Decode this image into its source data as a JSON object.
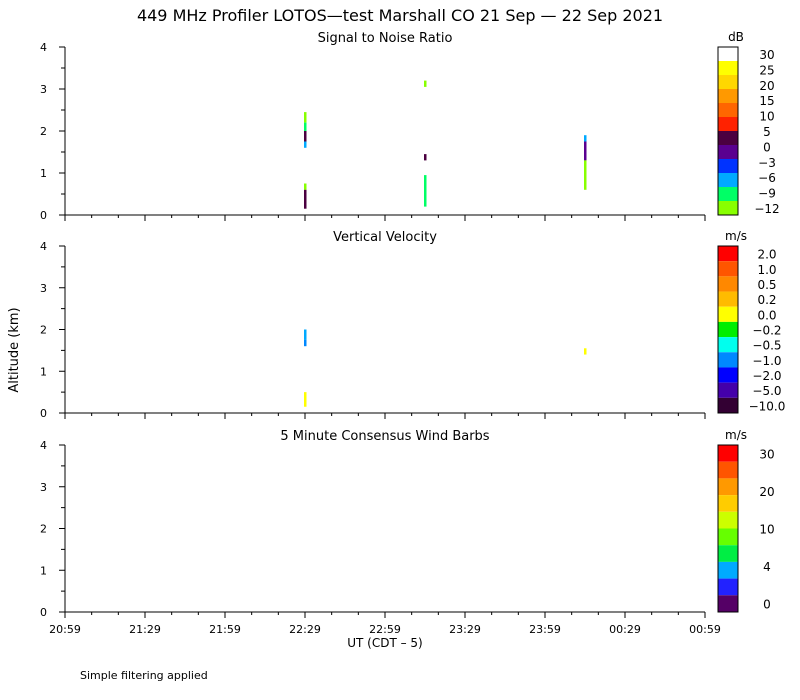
{
  "figure": {
    "title": "449 MHz Profiler LOTOS—test Marshall CO 21 Sep — 22 Sep 2021",
    "ylabel": "Altitude (km)",
    "xlabel": "UT  (CDT – 5)",
    "x_ticks": [
      "20:59",
      "21:29",
      "21:59",
      "22:29",
      "22:59",
      "23:29",
      "23:59",
      "00:29",
      "00:59"
    ],
    "y_ticks": [
      "0",
      "1",
      "2",
      "3",
      "4"
    ],
    "footnote": "Simple filtering applied"
  },
  "chart_data": [
    {
      "type": "heatmap",
      "title": "Signal to Noise Ratio",
      "units": "dB",
      "xlim": [
        0,
        240
      ],
      "ylim": [
        0,
        4
      ],
      "colorbar": {
        "labels": [
          "30",
          "25",
          "20",
          "15",
          "10",
          "5",
          "0",
          "−3",
          "−6",
          "−9",
          "−12"
        ],
        "colors": [
          "#ffffff",
          "#ffff00",
          "#ffd700",
          "#ff9900",
          "#ff6600",
          "#ff2200",
          "#4b0040",
          "#5a0090",
          "#0033ff",
          "#00aaff",
          "#00ff66",
          "#88ff00"
        ]
      },
      "segments": [
        {
          "x": 90,
          "y0": 2.2,
          "y1": 2.45,
          "color": "#88ff00"
        },
        {
          "x": 90,
          "y0": 2.0,
          "y1": 2.2,
          "color": "#00ff66"
        },
        {
          "x": 90,
          "y0": 1.75,
          "y1": 2.0,
          "color": "#4b0040"
        },
        {
          "x": 90,
          "y0": 1.6,
          "y1": 1.75,
          "color": "#00aaff"
        },
        {
          "x": 90,
          "y0": 0.6,
          "y1": 0.75,
          "color": "#88ff00"
        },
        {
          "x": 90,
          "y0": 0.15,
          "y1": 0.6,
          "color": "#4b0040"
        },
        {
          "x": 135,
          "y0": 3.05,
          "y1": 3.2,
          "color": "#88ff00"
        },
        {
          "x": 135,
          "y0": 1.3,
          "y1": 1.45,
          "color": "#4b0040"
        },
        {
          "x": 135,
          "y0": 0.2,
          "y1": 0.95,
          "color": "#00ff66"
        },
        {
          "x": 195,
          "y0": 1.75,
          "y1": 1.9,
          "color": "#00aaff"
        },
        {
          "x": 195,
          "y0": 1.3,
          "y1": 1.75,
          "color": "#5a0090"
        },
        {
          "x": 195,
          "y0": 0.6,
          "y1": 1.3,
          "color": "#88ff00"
        }
      ]
    },
    {
      "type": "heatmap",
      "title": "Vertical Velocity",
      "units": "m/s",
      "xlim": [
        0,
        240
      ],
      "ylim": [
        0,
        4
      ],
      "colorbar": {
        "labels": [
          "2.0",
          "1.0",
          "0.5",
          "0.2",
          "0.0",
          "−0.2",
          "−0.5",
          "−1.0",
          "−2.0",
          "−5.0",
          "−10.0"
        ],
        "colors": [
          "#ff0000",
          "#ff5500",
          "#ff8800",
          "#ffbb00",
          "#ffff00",
          "#00ee00",
          "#00ffee",
          "#0088ff",
          "#0000ff",
          "#4400aa",
          "#330033"
        ]
      },
      "segments": [
        {
          "x": 90,
          "y0": 1.75,
          "y1": 2.0,
          "color": "#00aaff"
        },
        {
          "x": 90,
          "y0": 1.6,
          "y1": 1.75,
          "color": "#0088ff"
        },
        {
          "x": 90,
          "y0": 0.15,
          "y1": 0.5,
          "color": "#ffff00"
        },
        {
          "x": 195,
          "y0": 1.4,
          "y1": 1.55,
          "color": "#ffff00"
        }
      ]
    },
    {
      "type": "scatter",
      "title": "5 Minute Consensus Wind Barbs",
      "units": "m/s",
      "xlim": [
        0,
        240
      ],
      "ylim": [
        0,
        4
      ],
      "colorbar": {
        "labels": [
          "30",
          "20",
          "10",
          "4",
          "0"
        ],
        "colors": [
          "#ff0000",
          "#ff5500",
          "#ff9900",
          "#ffcc00",
          "#ccff00",
          "#66ff00",
          "#00ee44",
          "#00aaff",
          "#2222ff",
          "#550066"
        ]
      },
      "segments": []
    }
  ]
}
